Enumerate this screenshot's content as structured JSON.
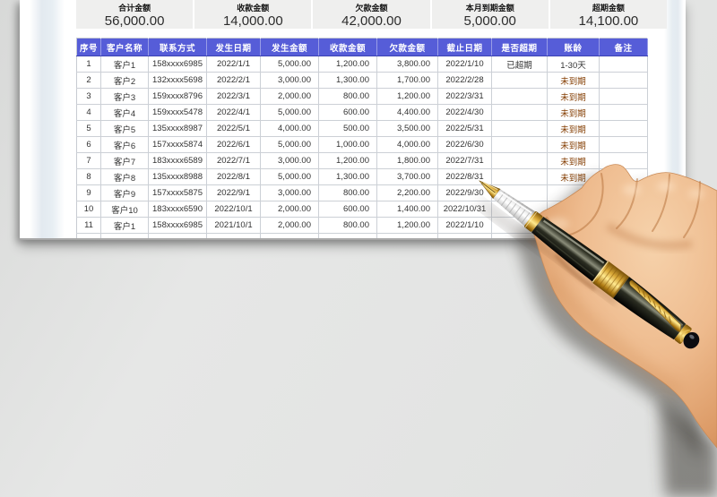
{
  "summary": {
    "cards": [
      {
        "label": "合计金额",
        "value": "56,000.00"
      },
      {
        "label": "收款金额",
        "value": "14,000.00"
      },
      {
        "label": "欠款金额",
        "value": "42,000.00"
      },
      {
        "label": "本月到期金额",
        "value": "5,000.00"
      },
      {
        "label": "超期金额",
        "value": "14,100.00"
      }
    ]
  },
  "table": {
    "headers": [
      "序号",
      "客户名称",
      "联系方式",
      "发生日期",
      "发生金额",
      "收款金额",
      "欠款金额",
      "截止日期",
      "是否超期",
      "账龄",
      "备注"
    ],
    "rows": [
      [
        "1",
        "客户1",
        "158xxxx6985",
        "2022/1/1",
        "5,000.00",
        "1,200.00",
        "3,800.00",
        "2022/1/10",
        "已超期",
        "1-30天",
        ""
      ],
      [
        "2",
        "客户2",
        "132xxxx5698",
        "2022/2/1",
        "3,000.00",
        "1,300.00",
        "1,700.00",
        "2022/2/28",
        "",
        "未到期",
        ""
      ],
      [
        "3",
        "客户3",
        "159xxxx8796",
        "2022/3/1",
        "2,000.00",
        "800.00",
        "1,200.00",
        "2022/3/31",
        "",
        "未到期",
        ""
      ],
      [
        "4",
        "客户4",
        "159xxxx5478",
        "2022/4/1",
        "5,000.00",
        "600.00",
        "4,400.00",
        "2022/4/30",
        "",
        "未到期",
        ""
      ],
      [
        "5",
        "客户5",
        "135xxxx8987",
        "2022/5/1",
        "4,000.00",
        "500.00",
        "3,500.00",
        "2022/5/31",
        "",
        "未到期",
        ""
      ],
      [
        "6",
        "客户6",
        "157xxxx5874",
        "2022/6/1",
        "5,000.00",
        "1,000.00",
        "4,000.00",
        "2022/6/30",
        "",
        "未到期",
        ""
      ],
      [
        "7",
        "客户7",
        "183xxxx6589",
        "2022/7/1",
        "3,000.00",
        "1,200.00",
        "1,800.00",
        "2022/7/31",
        "",
        "未到期",
        ""
      ],
      [
        "8",
        "客户8",
        "135xxxx8988",
        "2022/8/1",
        "5,000.00",
        "1,300.00",
        "3,700.00",
        "2022/8/31",
        "",
        "未到期",
        ""
      ],
      [
        "9",
        "客户9",
        "157xxxx5875",
        "2022/9/1",
        "3,000.00",
        "800.00",
        "2,200.00",
        "2022/9/30",
        "",
        "",
        ""
      ],
      [
        "10",
        "客户10",
        "183xxxx6590",
        "2022/10/1",
        "2,000.00",
        "600.00",
        "1,400.00",
        "2022/10/31",
        "",
        "",
        ""
      ],
      [
        "11",
        "客户1",
        "158xxxx6985",
        "2021/10/1",
        "2,000.00",
        "800.00",
        "1,200.00",
        "2022/1/10",
        "",
        "",
        ""
      ]
    ],
    "aging_pending_text": "未到期"
  },
  "colors": {
    "header_bg": "#565DD8",
    "aging_pending": "#833C00",
    "cell_text": "#333333"
  },
  "photo": {
    "name": "hand-holding-fountain-pen"
  }
}
